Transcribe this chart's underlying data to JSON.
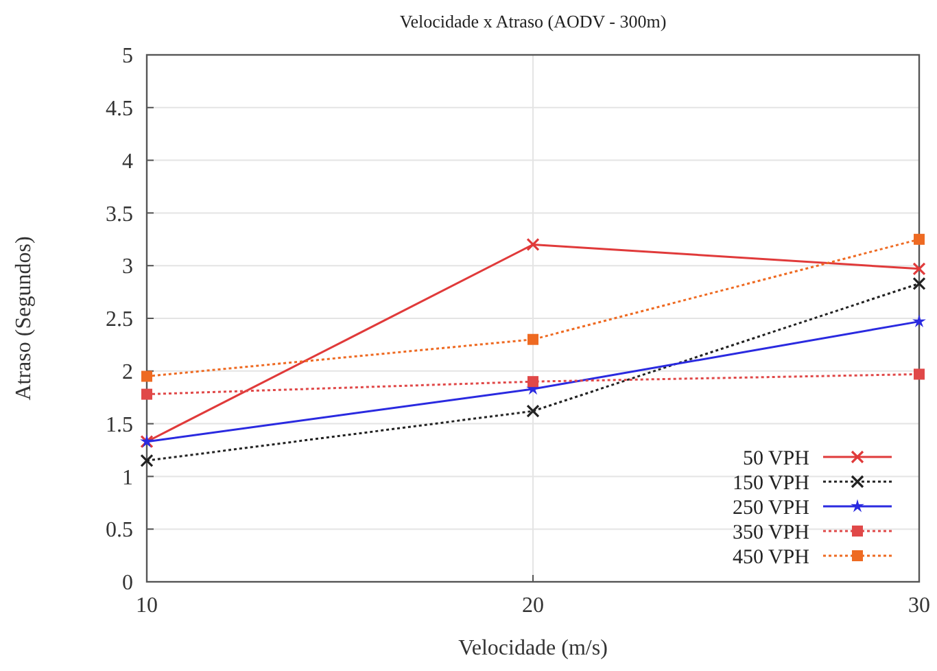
{
  "chart_data": {
    "type": "line",
    "title": "Velocidade x Atraso (AODV - 300m)",
    "xlabel": "Velocidade (m/s)",
    "ylabel": "Atraso (Segundos)",
    "x": [
      10,
      20,
      30
    ],
    "xlim": [
      10,
      30
    ],
    "xticks": [
      10,
      20,
      30
    ],
    "ylim": [
      0,
      5
    ],
    "yticks": [
      0,
      0.5,
      1,
      1.5,
      2,
      2.5,
      3,
      3.5,
      4,
      4.5,
      5
    ],
    "grid": true,
    "legend": "bottom right",
    "series": [
      {
        "name": "50 VPH",
        "color": "#e03a3a",
        "values": [
          1.33,
          3.2,
          2.97
        ],
        "marker": "cross",
        "line_style": "solid"
      },
      {
        "name": "150 VPH",
        "color": "#222222",
        "values": [
          1.15,
          1.62,
          2.83
        ],
        "marker": "cross",
        "line_style": "dotted"
      },
      {
        "name": "250 VPH",
        "color": "#2a2ae0",
        "values": [
          1.33,
          1.83,
          2.47
        ],
        "marker": "star",
        "line_style": "solid"
      },
      {
        "name": "350 VPH",
        "color": "#e04848",
        "values": [
          1.78,
          1.9,
          1.97
        ],
        "marker": "square",
        "line_style": "dotted"
      },
      {
        "name": "450 VPH",
        "color": "#ee6a22",
        "values": [
          1.95,
          2.3,
          3.25
        ],
        "marker": "square",
        "line_style": "dotted"
      }
    ]
  }
}
